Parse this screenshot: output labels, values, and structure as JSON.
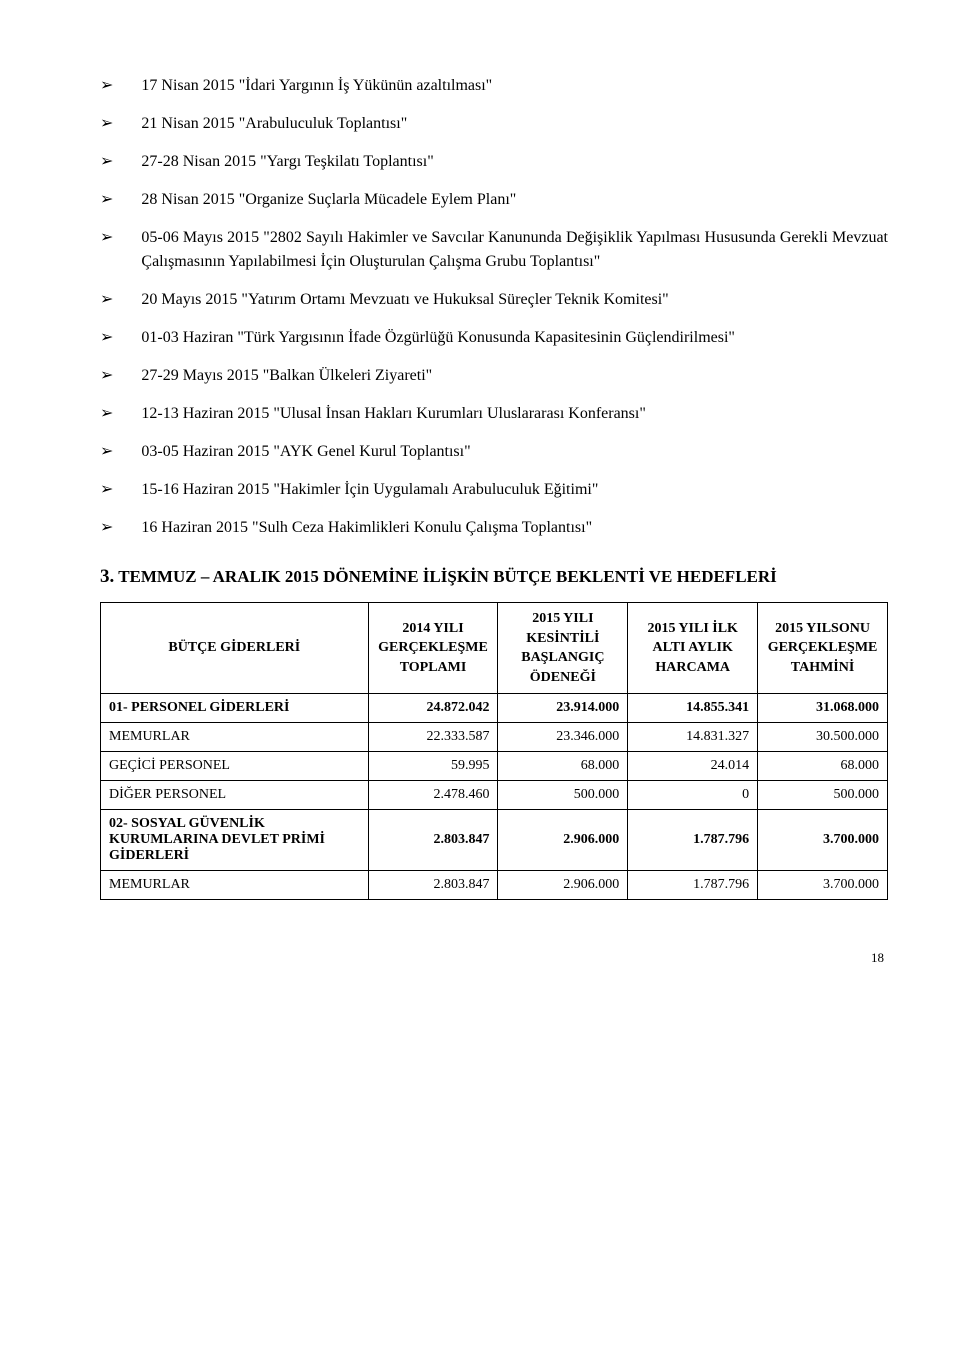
{
  "bullets": [
    "17 Nisan 2015 \"İdari Yargının İş Yükünün azaltılması\"",
    "21 Nisan 2015 \"Arabuluculuk Toplantısı\"",
    "27-28 Nisan 2015 \"Yargı Teşkilatı Toplantısı\"",
    "28 Nisan 2015 \"Organize Suçlarla Mücadele Eylem Planı\"",
    "05-06 Mayıs 2015 \"2802 Sayılı Hakimler ve Savcılar Kanununda Değişiklik Yapılması Hususunda Gerekli Mevzuat Çalışmasının Yapılabilmesi İçin Oluşturulan Çalışma Grubu Toplantısı\"",
    "20 Mayıs 2015 \"Yatırım Ortamı Mevzuatı ve Hukuksal Süreçler Teknik Komitesi\"",
    "01-03 Haziran \"Türk Yargısının İfade Özgürlüğü Konusunda Kapasitesinin Güçlendirilmesi\"",
    "27-29 Mayıs 2015 \"Balkan Ülkeleri Ziyareti\"",
    "12-13 Haziran 2015 \"Ulusal İnsan Hakları Kurumları Uluslararası Konferansı\"",
    "03-05 Haziran 2015 \"AYK Genel Kurul Toplantısı\"",
    "15-16 Haziran 2015 \"Hakimler İçin Uygulamalı Arabuluculuk Eğitimi\"",
    "16 Haziran 2015 \"Sulh Ceza Hakimlikleri Konulu Çalışma Toplantısı\""
  ],
  "section_heading_num": "3.",
  "section_heading_text": "TEMMUZ – ARALIK 2015 DÖNEMİNE İLİŞKİN BÜTÇE BEKLENTİ VE HEDEFLERİ",
  "table": {
    "headers": [
      "BÜTÇE GİDERLERİ",
      "2014 YILI GERÇEKLEŞME TOPLAMI",
      "2015 YILI KESİNTİLİ BAŞLANGIÇ ÖDENEĞİ",
      "2015 YILI İLK ALTI AYLIK HARCAMA",
      "2015 YILSONU GERÇEKLEŞME TAHMİNİ"
    ],
    "rows": [
      {
        "label": "01- PERSONEL GİDERLERİ",
        "bold": true,
        "v": [
          "24.872.042",
          "23.914.000",
          "14.855.341",
          "31.068.000"
        ]
      },
      {
        "label": "MEMURLAR",
        "bold": false,
        "v": [
          "22.333.587",
          "23.346.000",
          "14.831.327",
          "30.500.000"
        ]
      },
      {
        "label": "GEÇİCİ PERSONEL",
        "bold": false,
        "v": [
          "59.995",
          "68.000",
          "24.014",
          "68.000"
        ]
      },
      {
        "label": "DİĞER PERSONEL",
        "bold": false,
        "v": [
          "2.478.460",
          "500.000",
          "0",
          "500.000"
        ]
      },
      {
        "label": "02- SOSYAL GÜVENLİK KURUMLARINA DEVLET PRİMİ GİDERLERİ",
        "bold": true,
        "v": [
          "2.803.847",
          "2.906.000",
          "1.787.796",
          "3.700.000"
        ]
      },
      {
        "label": "MEMURLAR",
        "bold": false,
        "v": [
          "2.803.847",
          "2.906.000",
          "1.787.796",
          "3.700.000"
        ]
      }
    ]
  },
  "page_number": "18"
}
